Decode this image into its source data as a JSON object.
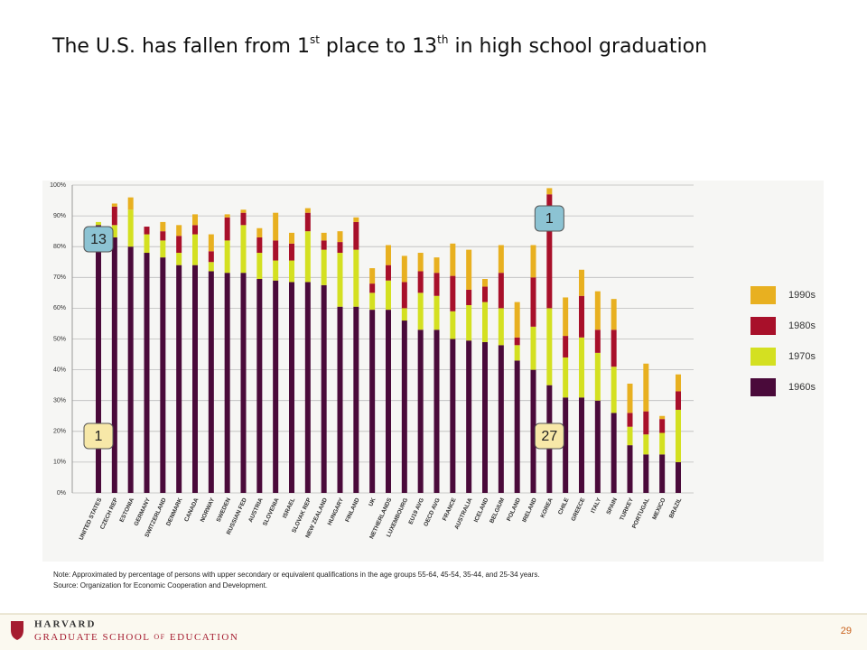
{
  "title": [
    "The U.S. has fallen from 1",
    "st",
    " place to 13",
    "th",
    " in high school graduation"
  ],
  "note": "Note: Approximated by percentage of persons with upper secondary or equivalent qualifications in the age groups 55-64, 45-54, 35-44, and 25-34 years.",
  "source": "Source: Organization for Economic Cooperation and Development.",
  "footer": {
    "brand": "HARVARD",
    "school": [
      "GRADUATE SCHOOL ",
      "OF",
      " EDUCATION"
    ],
    "page": "29"
  },
  "chart_data": {
    "type": "stacked_bar",
    "categories": [
      "UNITED STATES",
      "CZECH REP",
      "ESTONIA",
      "GERMANY",
      "SWITZERLAND",
      "DENMARK",
      "CANADA",
      "NORWAY",
      "SWEDEN",
      "RUSSIAN FED",
      "AUSTRIA",
      "SLOVENIA",
      "ISRAEL",
      "SLOVAK REP",
      "NEW ZEALAND",
      "HUNGARY",
      "FINLAND",
      "UK",
      "NETHERLANDS",
      "LUXEMBOURG",
      "EU19 AVG",
      "OECD AVG",
      "FRANCE",
      "AUSTRALIA",
      "ICELAND",
      "BELGIUM",
      "POLAND",
      "IRELAND",
      "KOREA",
      "CHILE",
      "GREECE",
      "ITALY",
      "SPAIN",
      "TURKEY",
      "PORTUGAL",
      "MEXICO",
      "BRAZIL"
    ],
    "series": [
      {
        "name": "1960s",
        "color": "#4a0a3a",
        "values": [
          87,
          83,
          80,
          78,
          76.5,
          74,
          74,
          72,
          71.5,
          71.5,
          69.5,
          69,
          68.5,
          68.5,
          67.5,
          60.5,
          60.5,
          59.5,
          59.5,
          56,
          53,
          53,
          50,
          49.5,
          49,
          48,
          43,
          40,
          35,
          31,
          31,
          30,
          26,
          15.5,
          12.5,
          12.5,
          10
        ]
      },
      {
        "name": "1970s",
        "color": "#d4e021",
        "values": [
          1,
          4,
          12,
          6,
          5.5,
          4,
          10,
          3,
          10.5,
          15.5,
          8.5,
          6.5,
          7,
          16.5,
          11.5,
          17.5,
          18.5,
          5.5,
          9.5,
          4,
          12,
          11,
          9,
          11.5,
          13,
          12,
          5,
          14,
          25,
          13,
          19.5,
          15.5,
          15,
          6,
          6.5,
          7,
          17
        ]
      },
      {
        "name": "1980s",
        "color": "#a8102a",
        "values": [
          0,
          6,
          0,
          2.5,
          3,
          5.5,
          3,
          3.5,
          7.5,
          4,
          5,
          6.5,
          5.5,
          6,
          3,
          3.5,
          9,
          3,
          5,
          8.5,
          7,
          7.5,
          11.5,
          5,
          5,
          11.5,
          2.5,
          16,
          37,
          7,
          13.5,
          7.5,
          12,
          4.5,
          7.5,
          4.5,
          6
        ]
      },
      {
        "name": "1990s",
        "color": "#e8b020",
        "values": [
          0,
          1,
          4,
          0,
          3,
          3.5,
          3.5,
          5.5,
          1,
          1,
          3,
          9,
          3.5,
          1.5,
          2.5,
          3.5,
          1.5,
          5,
          6.5,
          8.5,
          6,
          5,
          10.5,
          13,
          2.5,
          9,
          11.5,
          10.5,
          2,
          12.5,
          8.5,
          12.5,
          10,
          9.5,
          15.5,
          1,
          5.5
        ]
      }
    ],
    "ylim": [
      0,
      100
    ],
    "yticks": [
      {
        "value": 0,
        "label": "0%"
      },
      {
        "value": 10,
        "label": "10%"
      },
      {
        "value": 20,
        "label": "20%"
      },
      {
        "value": 30,
        "label": "30%"
      },
      {
        "value": 40,
        "label": "40%"
      },
      {
        "value": 50,
        "label": "50%"
      },
      {
        "value": 60,
        "label": "60%"
      },
      {
        "value": 70,
        "label": "70%"
      },
      {
        "value": 80,
        "label": "80%"
      },
      {
        "value": 90,
        "label": "90%"
      },
      {
        "value": 100,
        "label": "100%"
      }
    ],
    "grid": true,
    "annotations": [
      "13",
      "1",
      "1",
      "27"
    ]
  }
}
